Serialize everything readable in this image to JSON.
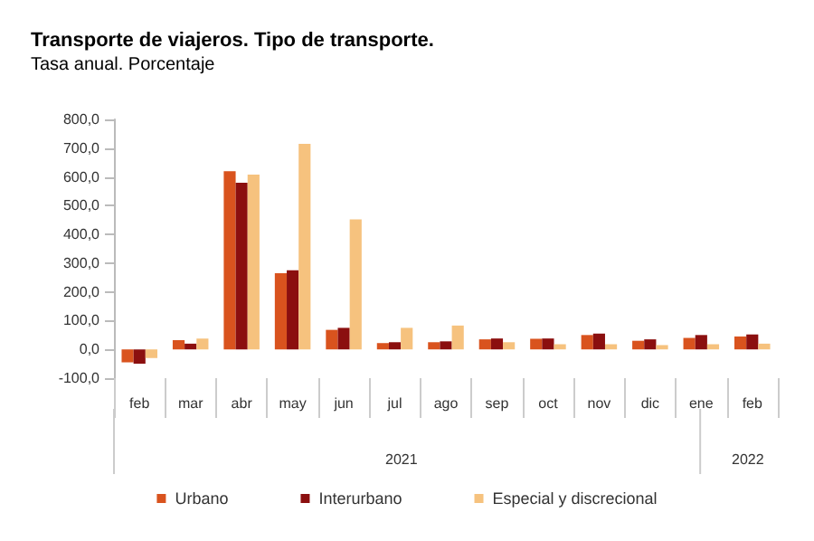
{
  "chart_data": {
    "type": "bar",
    "title": "Transporte de viajeros. Tipo de transporte.",
    "subtitle": "Tasa anual. Porcentaje",
    "categories": [
      "feb",
      "mar",
      "abr",
      "may",
      "jun",
      "jul",
      "ago",
      "sep",
      "oct",
      "nov",
      "dic",
      "ene",
      "feb"
    ],
    "series": [
      {
        "name": "Urbano",
        "color": "#d9531e",
        "values": [
          -45,
          32,
          620,
          265,
          68,
          22,
          25,
          35,
          37,
          50,
          30,
          40,
          45
        ]
      },
      {
        "name": "Interurbano",
        "color": "#8b0f0f",
        "values": [
          -50,
          20,
          580,
          275,
          75,
          25,
          28,
          38,
          38,
          55,
          35,
          50,
          52
        ]
      },
      {
        "name": "Especial y discrecional",
        "color": "#f6c27e",
        "values": [
          -30,
          38,
          608,
          715,
          452,
          75,
          83,
          25,
          18,
          18,
          15,
          18,
          20
        ]
      }
    ],
    "ylim": [
      -100,
      800
    ],
    "yticks": [
      {
        "value": -100,
        "label": "-100,0"
      },
      {
        "value": 0,
        "label": "0,0"
      },
      {
        "value": 100,
        "label": "100,0"
      },
      {
        "value": 200,
        "label": "200,0"
      },
      {
        "value": 300,
        "label": "300,0"
      },
      {
        "value": 400,
        "label": "400,0"
      },
      {
        "value": 500,
        "label": "500,0"
      },
      {
        "value": 600,
        "label": "600,0"
      },
      {
        "value": 700,
        "label": "700,0"
      },
      {
        "value": 800,
        "label": "800,0"
      }
    ],
    "annotations": [
      "2021",
      "2022"
    ],
    "grid": false,
    "legend": "bottom"
  }
}
